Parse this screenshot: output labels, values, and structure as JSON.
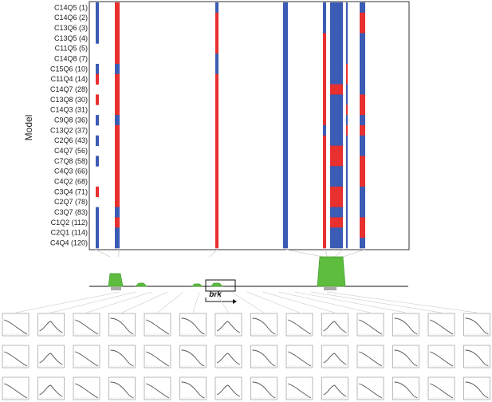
{
  "figure": {
    "y_axis_title": "Model",
    "gene_label": "brk"
  },
  "colors": {
    "blue": "#3b5bb4",
    "red": "#e8302f",
    "white": "#ffffff",
    "enhancer_green": "#5ebd3e",
    "enhancer_edge": "#3f9a2a",
    "grey_box": "#a9a9a9",
    "panel_border": "#9a9a9a",
    "curve": "#555555",
    "dotted": "#bbbbbb"
  },
  "models": [
    {
      "label": "C14Q5 (1)",
      "cols": [
        1,
        2,
        1,
        1,
        1,
        1,
        1,
        1
      ]
    },
    {
      "label": "C14Q6 (2)",
      "cols": [
        1,
        2,
        2,
        1,
        1,
        1,
        1,
        2
      ]
    },
    {
      "label": "C13Q6 (3)",
      "cols": [
        1,
        2,
        2,
        1,
        1,
        1,
        1,
        2
      ]
    },
    {
      "label": "C13Q5 (4)",
      "cols": [
        1,
        2,
        2,
        1,
        2,
        1,
        1,
        1
      ]
    },
    {
      "label": "C11Q5 (5)",
      "cols": [
        0,
        2,
        2,
        1,
        2,
        1,
        1,
        1
      ]
    },
    {
      "label": "C14Q8 (7)",
      "cols": [
        0,
        2,
        1,
        1,
        2,
        1,
        1,
        1
      ]
    },
    {
      "label": "C15Q6 (10)",
      "cols": [
        1,
        1,
        1,
        1,
        2,
        1,
        2,
        1
      ]
    },
    {
      "label": "C11Q4 (14)",
      "cols": [
        2,
        2,
        2,
        1,
        2,
        1,
        2,
        1
      ]
    },
    {
      "label": "C14Q7 (28)",
      "cols": [
        0,
        2,
        2,
        1,
        2,
        2,
        1,
        1
      ]
    },
    {
      "label": "C13Q8 (30)",
      "cols": [
        2,
        2,
        2,
        1,
        2,
        1,
        1,
        2
      ]
    },
    {
      "label": "C14Q3 (31)",
      "cols": [
        0,
        2,
        2,
        1,
        2,
        1,
        2,
        2
      ]
    },
    {
      "label": "C9Q8 (36)",
      "cols": [
        1,
        1,
        2,
        1,
        2,
        1,
        1,
        1
      ]
    },
    {
      "label": "C13Q2 (37)",
      "cols": [
        0,
        2,
        2,
        1,
        1,
        1,
        2,
        2
      ]
    },
    {
      "label": "C2Q6 (43)",
      "cols": [
        1,
        2,
        2,
        1,
        2,
        1,
        1,
        1
      ]
    },
    {
      "label": "C4Q7 (56)",
      "cols": [
        0,
        2,
        2,
        1,
        2,
        2,
        1,
        1
      ]
    },
    {
      "label": "C7Q8 (58)",
      "cols": [
        1,
        2,
        2,
        1,
        2,
        2,
        1,
        2
      ]
    },
    {
      "label": "C4Q3 (66)",
      "cols": [
        0,
        2,
        2,
        1,
        2,
        1,
        1,
        2
      ]
    },
    {
      "label": "C4Q2 (68)",
      "cols": [
        0,
        2,
        2,
        1,
        2,
        1,
        1,
        2
      ]
    },
    {
      "label": "C3Q4 (71)",
      "cols": [
        2,
        2,
        2,
        1,
        2,
        2,
        1,
        1
      ]
    },
    {
      "label": "C2Q7 (78)",
      "cols": [
        0,
        2,
        2,
        1,
        2,
        2,
        1,
        1
      ]
    },
    {
      "label": "C3Q7 (83)",
      "cols": [
        1,
        1,
        2,
        1,
        2,
        1,
        1,
        1
      ]
    },
    {
      "label": "C1Q2 (112)",
      "cols": [
        1,
        2,
        2,
        1,
        2,
        2,
        1,
        2
      ]
    },
    {
      "label": "C2Q1 (114)",
      "cols": [
        1,
        1,
        2,
        1,
        2,
        1,
        1,
        2
      ]
    },
    {
      "label": "C4Q4 (120)",
      "cols": [
        1,
        1,
        2,
        1,
        2,
        1,
        1,
        1
      ]
    }
  ],
  "motif_panels": {
    "count": 14,
    "rows": 3
  }
}
